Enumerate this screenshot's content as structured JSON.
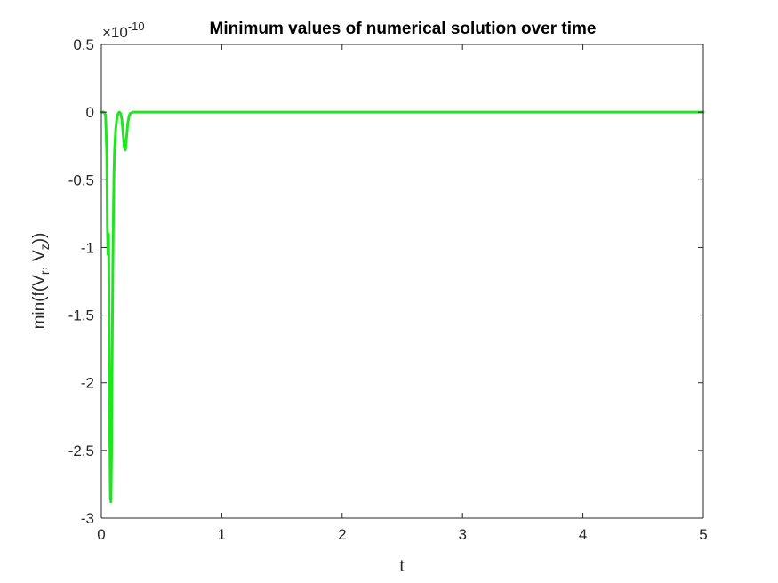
{
  "chart_data": {
    "type": "line",
    "title": "Minimum values of numerical solution over time",
    "xlabel": "t",
    "ylabel": {
      "prefix": "min(f(V",
      "sub1": "r",
      "middle": ", V",
      "sub2": "z",
      "suffix": "))"
    },
    "y_multiplier": {
      "base": "×10",
      "exponent": "-10"
    },
    "xlim": [
      0,
      5
    ],
    "ylim": [
      -3,
      0.5
    ],
    "x_ticks": [
      0,
      1,
      2,
      3,
      4,
      5
    ],
    "x_tick_labels": [
      "0",
      "1",
      "2",
      "3",
      "4",
      "5"
    ],
    "y_ticks": [
      0.5,
      0,
      -0.5,
      -1,
      -1.5,
      -2,
      -2.5,
      -3
    ],
    "y_tick_labels": [
      "0.5",
      "0",
      "-0.5",
      "-1",
      "-1.5",
      "-2",
      "-2.5",
      "-3"
    ],
    "grid": false,
    "series": [
      {
        "color": "#1ee61e",
        "x": [
          0,
          0.02,
          0.035,
          0.045,
          0.05,
          0.055,
          0.06,
          0.065,
          0.07,
          0.075,
          0.08,
          0.085,
          0.09,
          0.095,
          0.1,
          0.105,
          0.11,
          0.12,
          0.13,
          0.14,
          0.15,
          0.16,
          0.17,
          0.18,
          0.19,
          0.2,
          0.21,
          0.22,
          0.23,
          0.24,
          0.26,
          0.28,
          0.3,
          0.35,
          0.5,
          1,
          2,
          3,
          4,
          5
        ],
        "y": [
          0,
          0,
          -0.02,
          -0.3,
          -0.85,
          -1.05,
          -0.9,
          -1.6,
          -2.4,
          -2.85,
          -2.88,
          -2.5,
          -1.8,
          -1.2,
          -0.75,
          -0.45,
          -0.28,
          -0.12,
          -0.04,
          -0.01,
          0,
          -0.01,
          -0.05,
          -0.15,
          -0.26,
          -0.28,
          -0.18,
          -0.08,
          -0.03,
          -0.01,
          0,
          0,
          0,
          0,
          0,
          0,
          0,
          0,
          0,
          0
        ]
      }
    ]
  }
}
